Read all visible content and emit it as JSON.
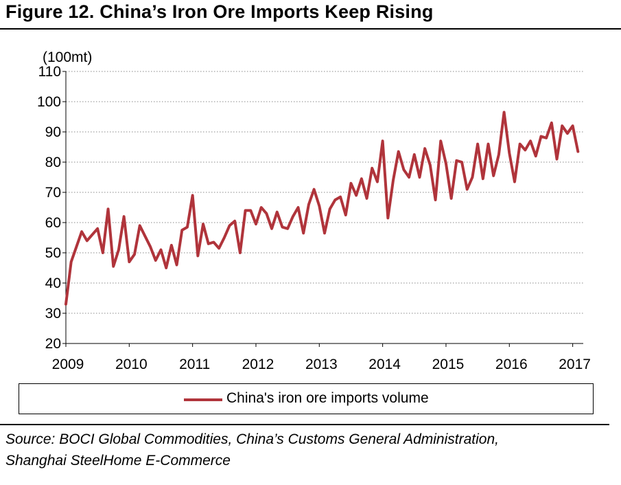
{
  "figure": {
    "title": "Figure 12. China’s Iron Ore Imports Keep Rising",
    "source_line1": "Source: BOCI Global Commodities, China’s Customs General Administration,",
    "source_line2": "Shanghai SteelHome E-Commerce"
  },
  "colors": {
    "series": "#b0343b",
    "grid": "#888888",
    "axis": "#000000"
  },
  "chart_data": {
    "type": "line",
    "ylabel": "(100mt)",
    "ylim": [
      20,
      110
    ],
    "yticks": [
      20,
      30,
      40,
      50,
      60,
      70,
      80,
      90,
      100,
      110
    ],
    "xlim": [
      "2009-01",
      "2017-03"
    ],
    "xtick_labels": [
      "2009",
      "2010",
      "2011",
      "2012",
      "2013",
      "2014",
      "2015",
      "2016",
      "2017"
    ],
    "grid": true,
    "legend_position": "bottom",
    "series": [
      {
        "name": "China's iron ore imports volume",
        "x": [
          "2009-01",
          "2009-02",
          "2009-03",
          "2009-04",
          "2009-05",
          "2009-06",
          "2009-07",
          "2009-08",
          "2009-09",
          "2009-10",
          "2009-11",
          "2009-12",
          "2010-01",
          "2010-02",
          "2010-03",
          "2010-04",
          "2010-05",
          "2010-06",
          "2010-07",
          "2010-08",
          "2010-09",
          "2010-10",
          "2010-11",
          "2010-12",
          "2011-01",
          "2011-02",
          "2011-03",
          "2011-04",
          "2011-05",
          "2011-06",
          "2011-07",
          "2011-08",
          "2011-09",
          "2011-10",
          "2011-11",
          "2011-12",
          "2012-01",
          "2012-02",
          "2012-03",
          "2012-04",
          "2012-05",
          "2012-06",
          "2012-07",
          "2012-08",
          "2012-09",
          "2012-10",
          "2012-11",
          "2012-12",
          "2013-01",
          "2013-02",
          "2013-03",
          "2013-04",
          "2013-05",
          "2013-06",
          "2013-07",
          "2013-08",
          "2013-09",
          "2013-10",
          "2013-11",
          "2013-12",
          "2014-01",
          "2014-02",
          "2014-03",
          "2014-04",
          "2014-05",
          "2014-06",
          "2014-07",
          "2014-08",
          "2014-09",
          "2014-10",
          "2014-11",
          "2014-12",
          "2015-01",
          "2015-02",
          "2015-03",
          "2015-04",
          "2015-05",
          "2015-06",
          "2015-07",
          "2015-08",
          "2015-09",
          "2015-10",
          "2015-11",
          "2015-12",
          "2016-01",
          "2016-02",
          "2016-03",
          "2016-04",
          "2016-05",
          "2016-06",
          "2016-07",
          "2016-08",
          "2016-09",
          "2016-10",
          "2016-11",
          "2016-12",
          "2017-01",
          "2017-02"
        ],
        "values": [
          33,
          47,
          52,
          57,
          54,
          56,
          58,
          50,
          64.5,
          45.5,
          51,
          62,
          47,
          49.5,
          59,
          55.5,
          52,
          47.5,
          51,
          45,
          52.5,
          46,
          57.5,
          58.5,
          69,
          49,
          59.5,
          53,
          53.5,
          51.5,
          55,
          59,
          60.5,
          50,
          64,
          64,
          59.5,
          65,
          63,
          58,
          63.5,
          58.5,
          58,
          62,
          65,
          56.5,
          66,
          71,
          65.5,
          56.5,
          64.5,
          67.5,
          68.5,
          62.5,
          73,
          69,
          74.5,
          68,
          78,
          73.5,
          87,
          61.5,
          74,
          83.5,
          77.5,
          75,
          82.5,
          75,
          84.5,
          79,
          67.5,
          87,
          79.5,
          68,
          80.5,
          80,
          71,
          75,
          86,
          74.5,
          86,
          75.5,
          82.5,
          96.5,
          83,
          73.5,
          86,
          84,
          87,
          82,
          88.5,
          88,
          93,
          81,
          92,
          89.5,
          92,
          83.5
        ]
      }
    ]
  }
}
